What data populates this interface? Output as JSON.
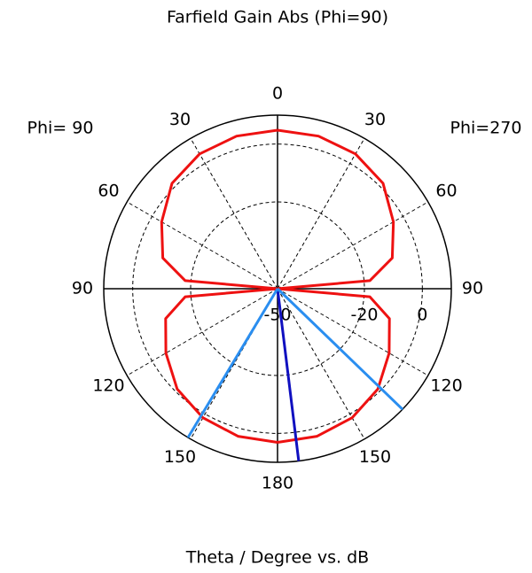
{
  "chart_data": {
    "type": "polar",
    "title": "Farfield Gain Abs (Phi=90)",
    "axis_label": "Theta / Degree vs. dB",
    "side_labels": {
      "left": "Phi= 90",
      "right": "Phi=270"
    },
    "rlim": [
      -50,
      10
    ],
    "rticks": [
      -50,
      -20,
      0
    ],
    "theta_ticks": [
      0,
      30,
      60,
      90,
      120,
      150,
      180
    ],
    "theta": [
      0,
      15,
      30,
      45,
      60,
      75,
      85,
      90,
      95,
      105,
      120,
      135,
      150,
      165,
      180
    ],
    "series": [
      {
        "side": "left",
        "color": "#ee1111",
        "values": [
          4.8,
          4.6,
          3.8,
          1.5,
          -3.8,
          -9,
          -18,
          -50,
          -18,
          -10,
          -5.5,
          -1,
          1.5,
          2.8,
          3.1
        ]
      },
      {
        "side": "right",
        "color": "#ee1111",
        "values": [
          4.8,
          4.6,
          3.8,
          1.5,
          -3.8,
          -9,
          -18,
          -50,
          -18,
          -10,
          -5.5,
          -1,
          1.5,
          2.8,
          3.1
        ]
      }
    ],
    "markers": [
      {
        "side": "right",
        "theta": 173,
        "color": "#1010c0"
      },
      {
        "side": "left",
        "theta": 149,
        "color": "#2a8ef0"
      },
      {
        "side": "right",
        "theta": 134,
        "color": "#2a8ef0"
      }
    ]
  }
}
